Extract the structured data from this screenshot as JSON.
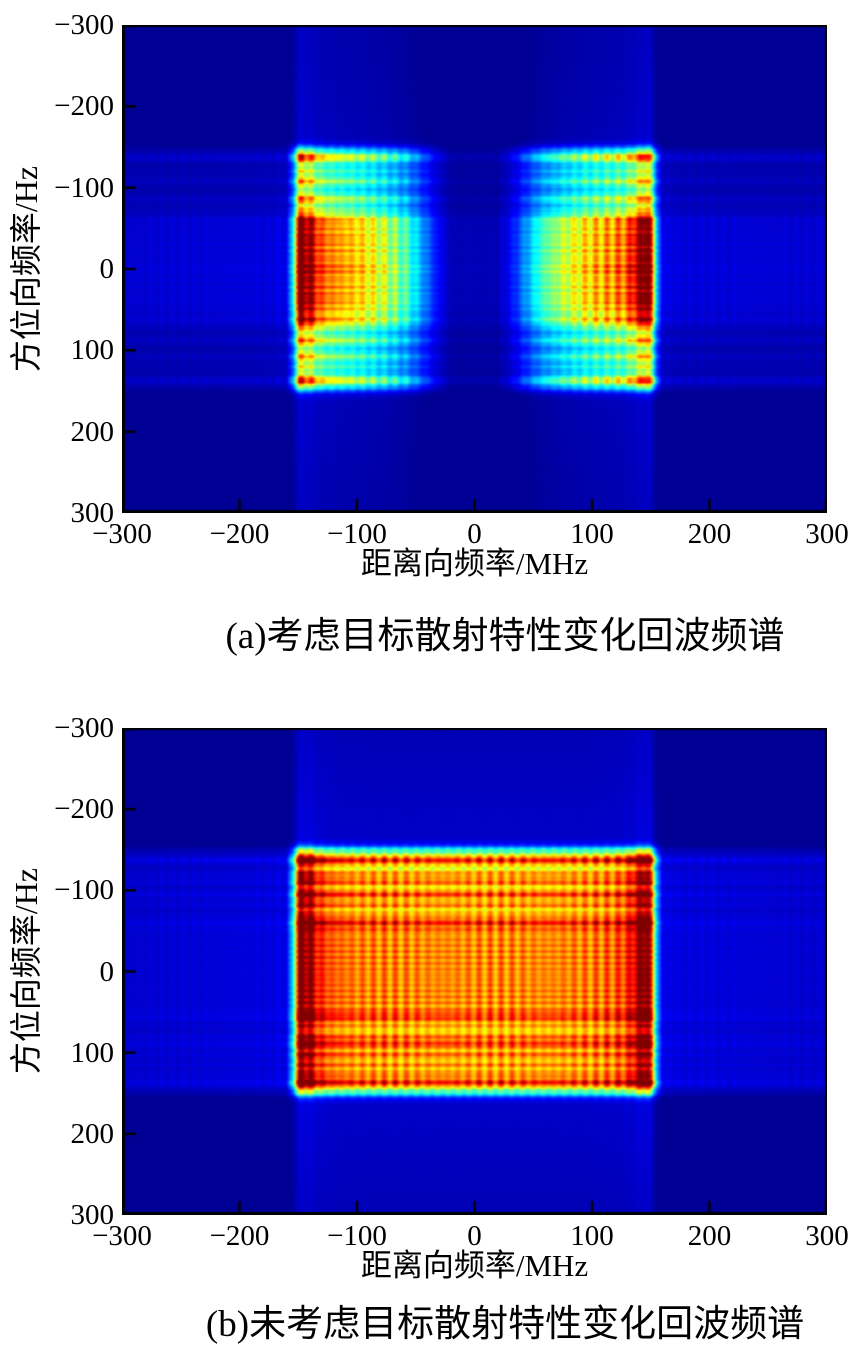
{
  "figure": {
    "background": "#ffffff",
    "colormap": "jet",
    "colormap_colors": {
      "min": "#000090",
      "low": "#0000ff",
      "mid_low": "#00e0ff",
      "mid": "#80ff80",
      "mid_high": "#ffe000",
      "high": "#ff3000",
      "max": "#800000"
    }
  },
  "chart_data": [
    {
      "type": "heatmap",
      "panel": "a",
      "caption": "(a)考虑目标散射特性变化回波频谱",
      "xlabel": "距离向频率/MHz",
      "ylabel": "方位向频率/Hz",
      "xlim": [
        -300,
        300
      ],
      "ylim": [
        -300,
        300
      ],
      "xticks": [
        -300,
        -200,
        -100,
        0,
        100,
        200,
        300
      ],
      "yticks": [
        -300,
        -200,
        -100,
        0,
        100,
        200,
        300
      ],
      "xtick_labels": [
        "−300",
        "−200",
        "−100",
        "0",
        "100",
        "200",
        "300"
      ],
      "ytick_labels": [
        "−300",
        "−200",
        "−100",
        "0",
        "100",
        "200",
        "300"
      ],
      "description": "Echo spectrum with target-scattering variation: two mirror-image spectral blocks over range frequency ±(30–150) MHz and azimuth frequency ±150 Hz; intensity peaks (red dotted columns) at |range freq|≈145 MHz, fading to cyan toward the center gap; bright dotted rows at azimuth ≈0,±60,±86,±108,±137 Hz; faint sidelobe stripes elsewhere on dark blue background.",
      "model": {
        "col_profile": [
          [
            0,
            0.05
          ],
          [
            20,
            0.05
          ],
          [
            32,
            0.13
          ],
          [
            45,
            0.27
          ],
          [
            58,
            0.42
          ],
          [
            75,
            0.53
          ],
          [
            95,
            0.62
          ],
          [
            115,
            0.68
          ],
          [
            130,
            0.74
          ],
          [
            138,
            0.88
          ],
          [
            146,
            1.0
          ],
          [
            150,
            0.92
          ],
          [
            155,
            0.3
          ],
          [
            160,
            0.1
          ],
          [
            175,
            0.085
          ],
          [
            300,
            0.075
          ]
        ],
        "row_env": [
          [
            0,
            0.92
          ],
          [
            46,
            0.9
          ],
          [
            55,
            0.78
          ],
          [
            70,
            0.72
          ],
          [
            85,
            0.66
          ],
          [
            100,
            0.62
          ],
          [
            115,
            0.58
          ],
          [
            128,
            0.62
          ],
          [
            140,
            0.66
          ],
          [
            148,
            0.5
          ],
          [
            153,
            0.18
          ],
          [
            160,
            0.1
          ],
          [
            170,
            0.09
          ],
          [
            300,
            0.075
          ]
        ],
        "row_peaks": [
          [
            -137,
            0.45,
            4
          ],
          [
            -120,
            0.16,
            3
          ],
          [
            -108,
            0.32,
            3.5
          ],
          [
            -86,
            0.32,
            3.5
          ],
          [
            -72,
            0.15,
            3
          ],
          [
            -60,
            0.52,
            4.5
          ],
          [
            -50,
            0.36,
            3.5
          ],
          [
            -40,
            0.38,
            3.5
          ],
          [
            -31,
            0.38,
            3
          ],
          [
            -22,
            0.4,
            3
          ],
          [
            -13,
            0.38,
            3
          ],
          [
            -4,
            0.42,
            3
          ],
          [
            4,
            0.42,
            3
          ],
          [
            13,
            0.38,
            3
          ],
          [
            22,
            0.4,
            3
          ],
          [
            31,
            0.38,
            3
          ],
          [
            40,
            0.38,
            3.5
          ],
          [
            50,
            0.36,
            3.5
          ],
          [
            62,
            0.52,
            4.5
          ],
          [
            72,
            0.15,
            3
          ],
          [
            88,
            0.32,
            3.5
          ],
          [
            108,
            0.3,
            3.5
          ],
          [
            120,
            0.16,
            3
          ],
          [
            137,
            0.45,
            4
          ]
        ],
        "col_dot_period": 9,
        "col_dot_depth": 0.13,
        "row_dot_period": 10,
        "row_dot_depth": 0.32,
        "env_ripple_period": 6.5,
        "env_ripple_depth": 0.12,
        "gain": 1.0,
        "floor": 0.02
      }
    },
    {
      "type": "heatmap",
      "panel": "b",
      "caption": "(b)未考虑目标散射特性变化回波频谱",
      "xlabel": "距离向频率/MHz",
      "ylabel": "方位向频率/Hz",
      "xlim": [
        -300,
        300
      ],
      "ylim": [
        -300,
        300
      ],
      "xticks": [
        -300,
        -200,
        -100,
        0,
        100,
        200,
        300
      ],
      "yticks": [
        -300,
        -200,
        -100,
        0,
        100,
        200,
        300
      ],
      "xtick_labels": [
        "−300",
        "−200",
        "−100",
        "0",
        "100",
        "200",
        "300"
      ],
      "ytick_labels": [
        "−300",
        "−200",
        "−100",
        "0",
        "100",
        "200",
        "300"
      ],
      "description": "Echo spectrum without target-scattering variation: one filled yellow-green spectral block spanning range frequency ±150 MHz and azimuth frequency ±150 Hz; red dotted columns at both edges |range freq|≈145 MHz; full-width red dotted rows at azimuth ≈±60,±90,±95,±110,±137 Hz and dense rows within ±45 Hz; faint sidelobe stripes on dark blue background.",
      "model": {
        "col_profile": [
          [
            0,
            0.72
          ],
          [
            60,
            0.72
          ],
          [
            100,
            0.73
          ],
          [
            120,
            0.76
          ],
          [
            132,
            0.82
          ],
          [
            140,
            0.95
          ],
          [
            146,
            1.0
          ],
          [
            150,
            0.9
          ],
          [
            155,
            0.3
          ],
          [
            160,
            0.1
          ],
          [
            175,
            0.09
          ],
          [
            300,
            0.075
          ]
        ],
        "row_env": [
          [
            0,
            0.85
          ],
          [
            50,
            0.85
          ],
          [
            100,
            0.82
          ],
          [
            140,
            0.8
          ],
          [
            150,
            0.6
          ],
          [
            156,
            0.2
          ],
          [
            163,
            0.1
          ],
          [
            300,
            0.075
          ]
        ],
        "row_peaks": [
          [
            -137,
            0.5,
            4
          ],
          [
            -120,
            0.28,
            3.5
          ],
          [
            -110,
            0.35,
            3.5
          ],
          [
            -95,
            0.42,
            4
          ],
          [
            -82,
            0.3,
            3.5
          ],
          [
            -70,
            0.22,
            3
          ],
          [
            -60,
            0.45,
            4
          ],
          [
            -50,
            0.3,
            3
          ],
          [
            -41,
            0.26,
            3
          ],
          [
            -33,
            0.26,
            3
          ],
          [
            -25,
            0.26,
            3
          ],
          [
            -17,
            0.26,
            3
          ],
          [
            -9,
            0.26,
            3
          ],
          [
            -1,
            0.26,
            3
          ],
          [
            7,
            0.26,
            3
          ],
          [
            15,
            0.26,
            3
          ],
          [
            23,
            0.26,
            3
          ],
          [
            31,
            0.26,
            3
          ],
          [
            39,
            0.26,
            3
          ],
          [
            48,
            0.3,
            3
          ],
          [
            57,
            0.4,
            4
          ],
          [
            68,
            0.22,
            3
          ],
          [
            80,
            0.3,
            3.5
          ],
          [
            90,
            0.42,
            4
          ],
          [
            103,
            0.35,
            3.5
          ],
          [
            115,
            0.3,
            3.5
          ],
          [
            126,
            0.3,
            3.5
          ],
          [
            137,
            0.5,
            4
          ]
        ],
        "col_dot_period": 9,
        "col_dot_depth": 0.12,
        "row_dot_period": 10,
        "row_dot_depth": 0.3,
        "env_ripple_period": 7,
        "env_ripple_depth": 0.1,
        "gain": 1.08,
        "floor": 0.02
      }
    }
  ]
}
